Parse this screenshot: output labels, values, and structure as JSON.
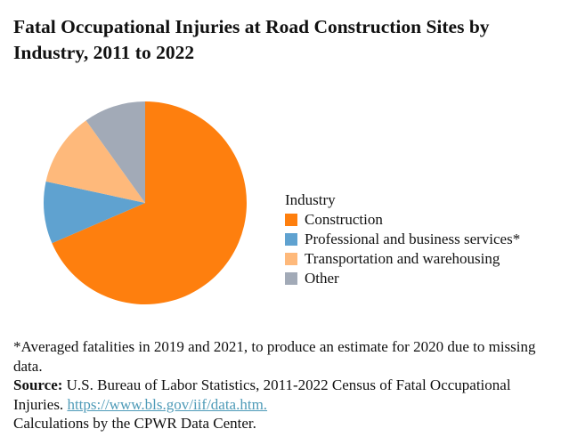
{
  "title": "Fatal Occupational Injuries at Road Construction Sites by Industry, 2011 to 2022",
  "legend": {
    "title": "Industry",
    "items": [
      {
        "label": "Construction",
        "color": "#fe7f0e"
      },
      {
        "label": "Professional and business services*",
        "color": "#5fa2d0"
      },
      {
        "label": "Transportation and warehousing",
        "color": "#feb97b"
      },
      {
        "label": "Other",
        "color": "#a2aab7"
      }
    ]
  },
  "notes": {
    "footnote": "*Averaged fatalities in 2019 and 2021, to produce an estimate for 2020 due to missing data.",
    "source_label": "Source:",
    "source_text": " U.S. Bureau of Labor Statistics, 2011-2022 Census of Fatal Occupational Injuries. ",
    "source_link": "https://www.bls.gov/iif/data.htm.",
    "calculations": "Calculations by the CPWR Data Center."
  },
  "chart_data": {
    "type": "pie",
    "title": "Fatal Occupational Injuries at Road Construction Sites by Industry, 2011 to 2022",
    "categories": [
      "Construction",
      "Professional and business services*",
      "Transportation and warehousing",
      "Other"
    ],
    "values": [
      68.5,
      9.9,
      11.7,
      9.9
    ],
    "units": "percent (estimated from slice angles)",
    "colors": [
      "#fe7f0e",
      "#5fa2d0",
      "#feb97b",
      "#a2aab7"
    ],
    "legend_title": "Industry",
    "legend_position": "right",
    "start_angle": "12 o'clock, clockwise"
  }
}
